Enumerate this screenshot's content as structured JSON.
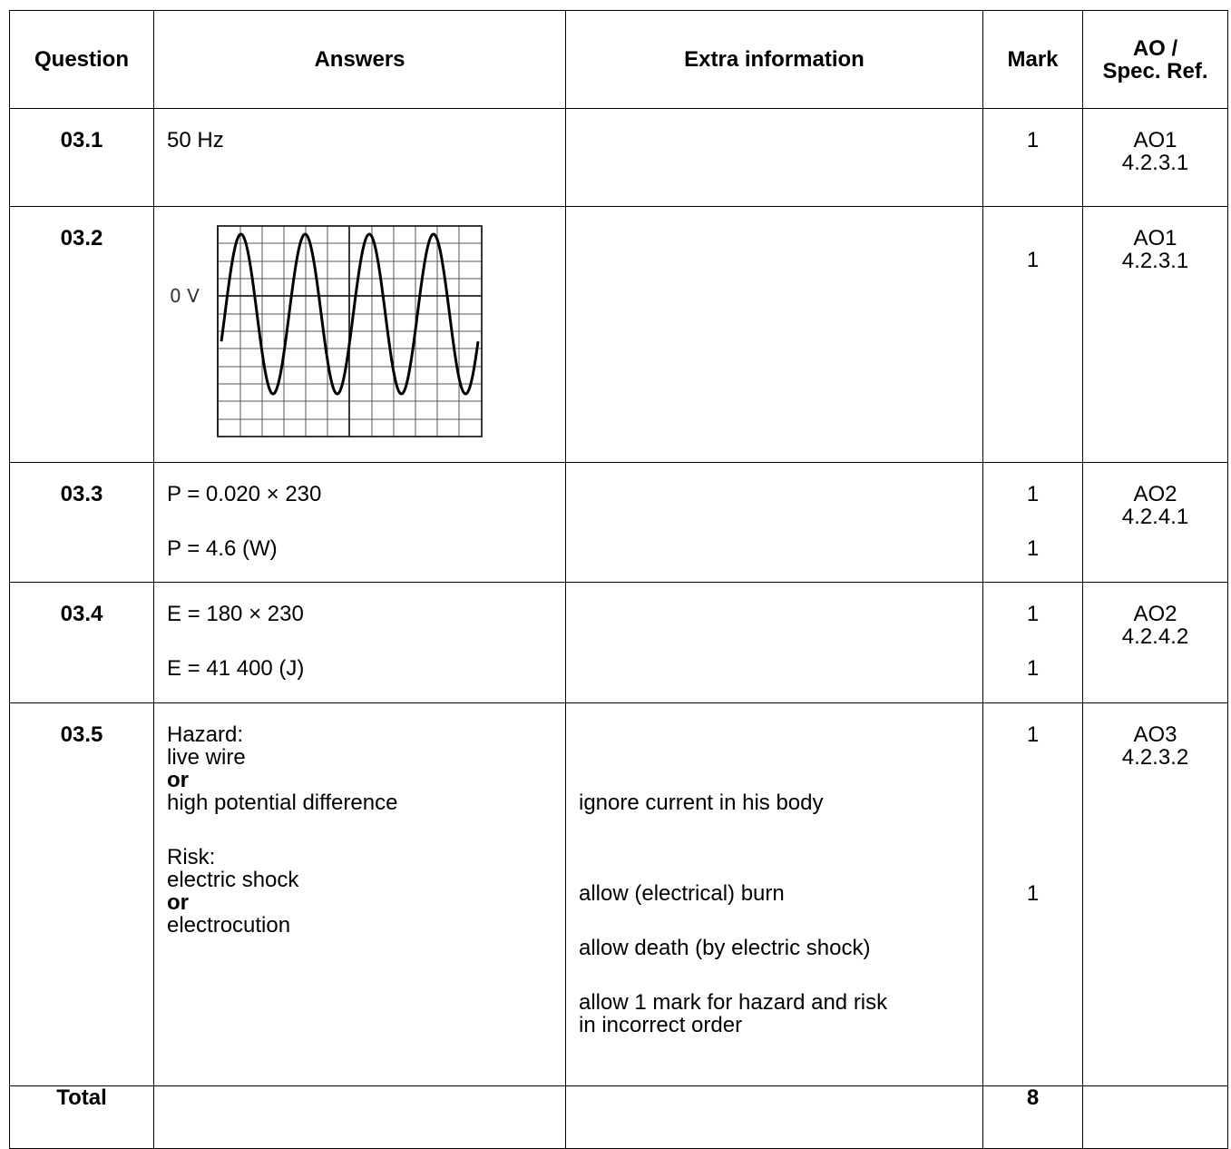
{
  "headers": {
    "question": "Question",
    "answers": "Answers",
    "extra": "Extra information",
    "mark": "Mark",
    "ao_line1": "AO /",
    "ao_line2": "Spec. Ref."
  },
  "rows": [
    {
      "q": "03.1",
      "answer": "50 Hz",
      "mark": "1",
      "ao1": "AO1",
      "ao2": "4.2.3.1"
    },
    {
      "q": "03.2",
      "mark": "1",
      "ao1": "AO1",
      "ao2": "4.2.3.1",
      "graph_label": "0 V"
    },
    {
      "q": "03.3",
      "answer1": "P = 0.020 × 230",
      "answer2": "P = 4.6 (W)",
      "mark1": "1",
      "mark2": "1",
      "ao1": "AO2",
      "ao2": "4.2.4.1"
    },
    {
      "q": "03.4",
      "answer1": "E = 180 × 230",
      "answer2": "E = 41 400 (J)",
      "mark1": "1",
      "mark2": "1",
      "ao1": "AO2",
      "ao2": "4.2.4.2"
    },
    {
      "q": "03.5",
      "hazard_label": "Hazard:",
      "hazard_a": "live wire",
      "or1": "or",
      "hazard_b": "high potential difference",
      "risk_label": "Risk:",
      "risk_a": "electric shock",
      "or2": "or",
      "risk_b": "electrocution",
      "extra1": "ignore current in his body",
      "extra2": "allow (electrical) burn",
      "extra3": "allow death (by electric shock)",
      "extra4a": "allow 1 mark for hazard and risk",
      "extra4b": "in incorrect order",
      "mark1": "1",
      "mark2": "1",
      "ao1": "AO3",
      "ao2": "4.2.3.2"
    }
  ],
  "total": {
    "label": "Total",
    "mark": "8"
  }
}
